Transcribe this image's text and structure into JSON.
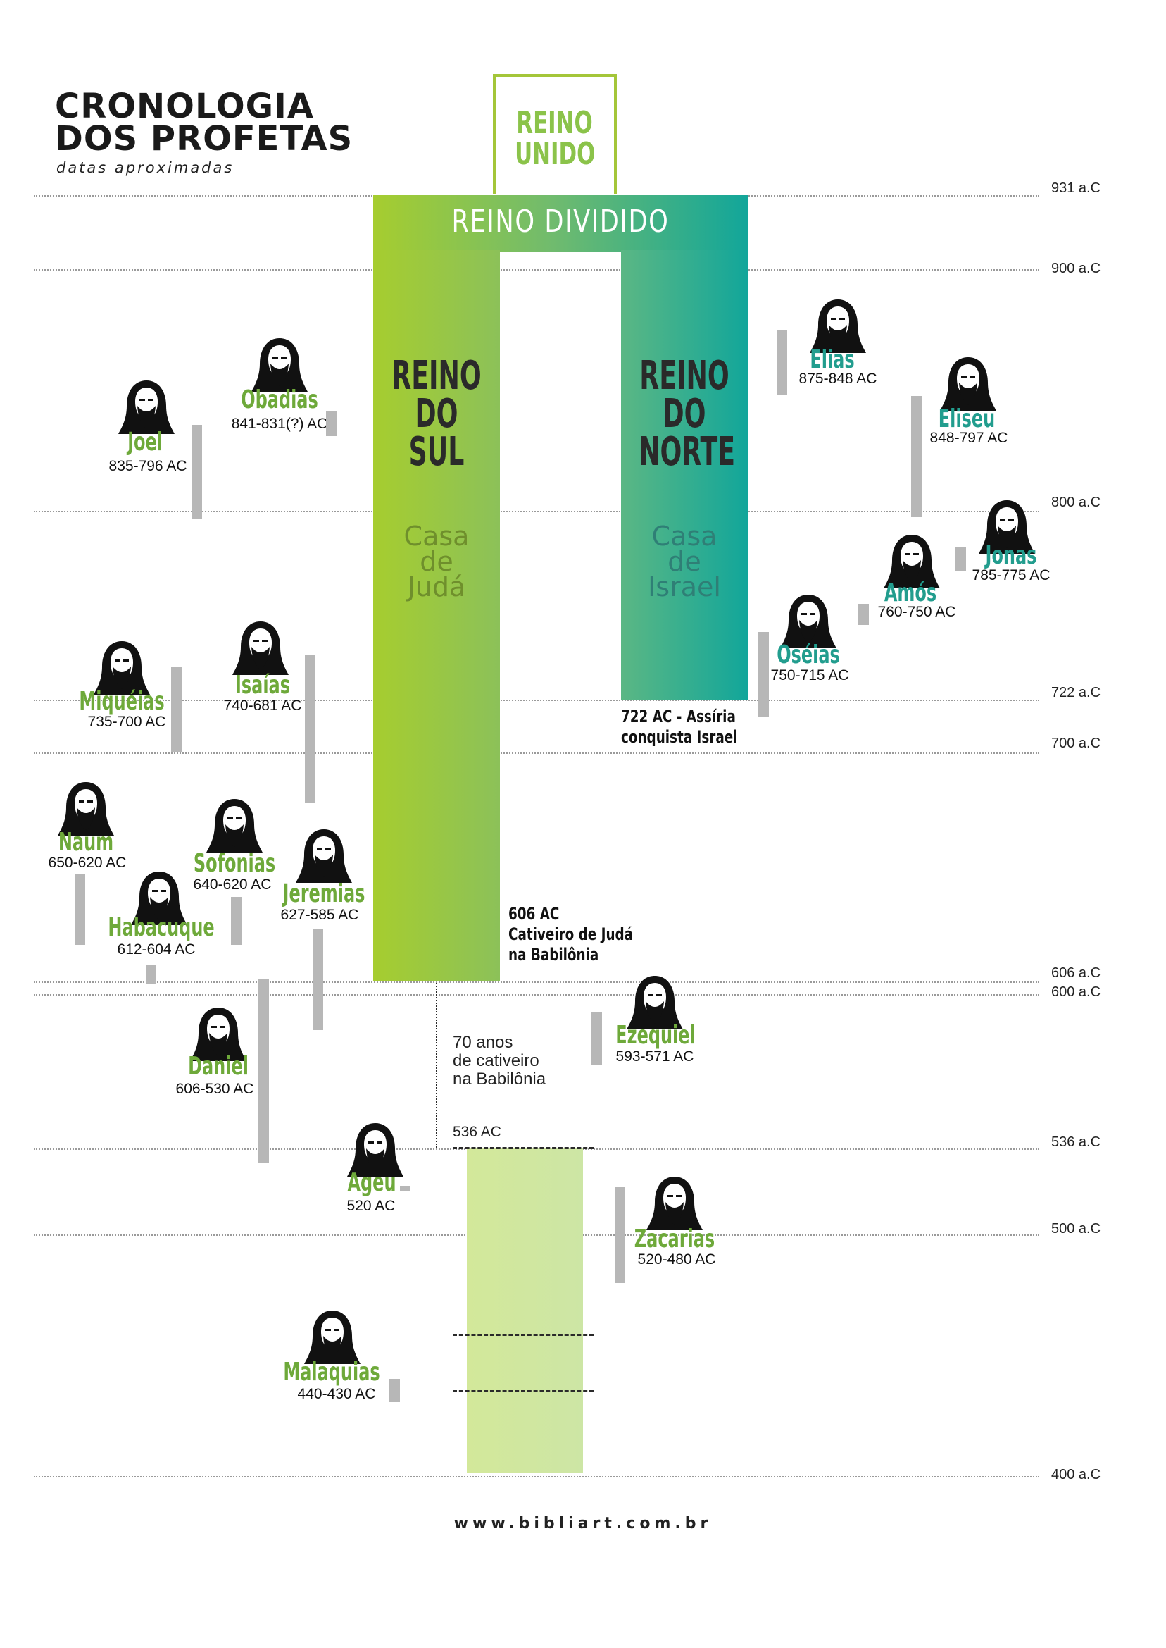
{
  "title": {
    "line1": "CRONOLOGIA",
    "line2": "DOS PROFETAS",
    "subtitle": "datas aproximadas"
  },
  "reino_unido": {
    "line1": "REINO",
    "line2": "UNIDO"
  },
  "reino_dividido": "REINO DIVIDIDO",
  "reino_sul": {
    "line1": "REINO",
    "line2": "DO",
    "line3": "SUL",
    "casa1": "Casa",
    "casa2": "de",
    "casa3": "Judá"
  },
  "reino_norte": {
    "line1": "REINO",
    "line2": "DO",
    "line3": "NORTE",
    "casa1": "Casa",
    "casa2": "de",
    "casa3": "Israel"
  },
  "notes": {
    "assiria_1": "722 AC -  Assíria",
    "assiria_2": "conquista Israel",
    "cativeiro_1": "606 AC",
    "cativeiro_2": "Cativeiro de Judá",
    "cativeiro_3": "na Babilônia",
    "setenta_1": "70 anos",
    "setenta_2": "de cativeiro",
    "setenta_3": "na Babilônia",
    "retorno": "536 AC"
  },
  "timeline": {
    "t931": "931 a.C",
    "t900": "900 a.C",
    "t800": "800 a.C",
    "t722": "722 a.C",
    "t700": "700 a.C",
    "t606": "606 a.C",
    "t600": "600 a.C",
    "t536": "536 a.C",
    "t500": "500 a.C",
    "t400": "400 a.C"
  },
  "prophets": {
    "obadias": {
      "name": "Obadias",
      "dates": "841-831(?) AC"
    },
    "joel": {
      "name": "Joel",
      "dates": "835-796 AC"
    },
    "miqueias": {
      "name": "Miquéias",
      "dates": "735-700 AC"
    },
    "isaias": {
      "name": "Isaías",
      "dates": "740-681 AC"
    },
    "naum": {
      "name": "Naum",
      "dates": "650-620 AC"
    },
    "sofonias": {
      "name": "Sofonias",
      "dates": "640-620 AC"
    },
    "habacuque": {
      "name": "Habacuque",
      "dates": "612-604 AC"
    },
    "jeremias": {
      "name": "Jeremias",
      "dates": "627-585 AC"
    },
    "daniel": {
      "name": "Daniel",
      "dates": "606-530 AC"
    },
    "ageu": {
      "name": "Ageu",
      "dates": "520 AC"
    },
    "malaquias": {
      "name": "Malaquias",
      "dates": "440-430 AC"
    },
    "elias": {
      "name": "Elias",
      "dates": "875-848 AC"
    },
    "eliseu": {
      "name": "Eliseu",
      "dates": "848-797 AC"
    },
    "jonas": {
      "name": "Jonas",
      "dates": "785-775 AC"
    },
    "amos": {
      "name": "Amós",
      "dates": "760-750 AC"
    },
    "oseias": {
      "name": "Oséias",
      "dates": "750-715 AC"
    },
    "ezequiel": {
      "name": "Ezequiel",
      "dates": "593-571 AC"
    },
    "zacarias": {
      "name": "Zacarias",
      "dates": "520-480 AC"
    }
  },
  "footer": "www.bibliart.com.br",
  "colors": {
    "green": "#8bc34a",
    "teal": "#12a69a",
    "bar": "#b7b7b7"
  },
  "icon": "prophet-icon"
}
